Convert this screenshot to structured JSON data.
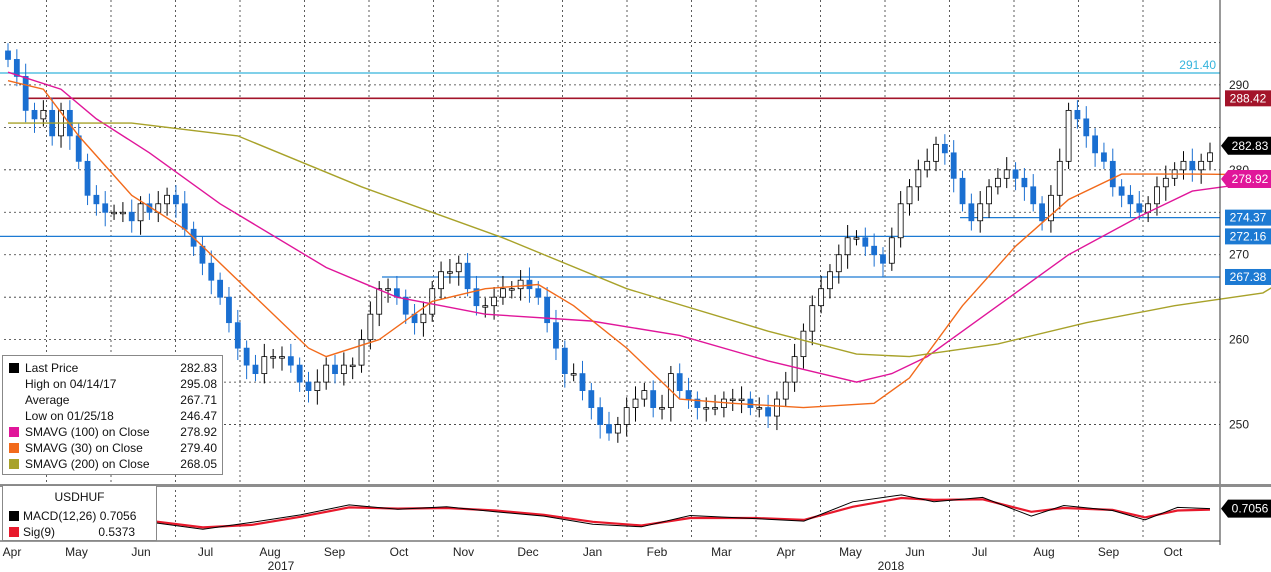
{
  "chart_data": {
    "type": "candlestick",
    "instrument": "USDHUF",
    "x_axis": {
      "months": [
        "Apr",
        "May",
        "Jun",
        "Jul",
        "Aug",
        "Sep",
        "Oct",
        "Nov",
        "Dec",
        "Jan",
        "Feb",
        "Mar",
        "Apr",
        "May",
        "Jun",
        "Jul",
        "Aug",
        "Sep",
        "Oct"
      ],
      "years": [
        "2017",
        "2018"
      ]
    },
    "y_axis": {
      "ticks": [
        250,
        260,
        270,
        280,
        290
      ],
      "range": [
        243,
        300
      ]
    },
    "close_series": [
      293,
      291,
      287,
      286,
      287,
      284,
      287,
      284,
      281,
      277,
      276,
      275,
      275,
      275,
      274,
      276,
      275,
      276,
      277,
      276,
      273,
      271,
      269,
      267,
      265,
      262,
      259,
      257,
      256,
      258,
      258,
      258,
      257,
      255,
      254,
      255,
      257,
      256,
      257,
      257,
      260,
      263,
      266,
      266,
      265,
      263,
      262,
      263,
      266,
      268,
      268,
      269,
      266,
      264,
      264,
      265,
      266,
      266,
      267,
      266,
      265,
      262,
      259,
      256,
      256,
      254,
      252,
      250,
      249,
      250,
      252,
      253,
      254,
      252,
      252,
      256,
      254,
      253,
      252,
      252,
      252,
      253,
      253,
      253,
      252,
      252,
      251,
      253,
      255,
      258,
      261,
      264,
      266,
      268,
      270,
      272,
      272,
      271,
      270,
      269,
      272,
      276,
      278,
      280,
      281,
      283,
      282,
      279,
      276,
      274,
      276,
      278,
      279,
      280,
      279,
      278,
      276,
      274,
      277,
      281,
      287,
      286,
      284,
      282,
      281,
      278,
      277,
      276,
      275,
      276,
      278,
      279,
      280,
      281,
      280,
      281,
      282
    ],
    "series": [
      {
        "name": "SMAVG (100)",
        "color": "#e0169a",
        "points": [
          [
            0,
            291.5
          ],
          [
            6,
            289.5
          ],
          [
            10,
            286
          ],
          [
            16,
            282
          ],
          [
            24,
            276
          ],
          [
            36,
            268.5
          ],
          [
            44,
            265
          ],
          [
            54,
            263
          ],
          [
            66,
            262.2
          ],
          [
            76,
            260.5
          ],
          [
            86,
            257.5
          ],
          [
            96,
            255
          ],
          [
            100,
            256
          ],
          [
            104,
            258
          ],
          [
            108,
            261
          ],
          [
            114,
            265.5
          ],
          [
            120,
            270
          ],
          [
            128,
            274.5
          ],
          [
            134,
            277.5
          ],
          [
            144,
            278.92
          ]
        ]
      },
      {
        "name": "SMAVG (30)",
        "color": "#f26a1b",
        "points": [
          [
            0,
            290.5
          ],
          [
            4,
            289.5
          ],
          [
            8,
            284
          ],
          [
            14,
            277
          ],
          [
            20,
            273
          ],
          [
            28,
            265
          ],
          [
            34,
            259
          ],
          [
            36,
            258
          ],
          [
            42,
            260
          ],
          [
            48,
            264.5
          ],
          [
            54,
            266
          ],
          [
            60,
            266.5
          ],
          [
            64,
            264
          ],
          [
            70,
            259
          ],
          [
            76,
            253
          ],
          [
            82,
            252.5
          ],
          [
            90,
            252
          ],
          [
            98,
            252.5
          ],
          [
            102,
            255.5
          ],
          [
            108,
            264
          ],
          [
            114,
            271
          ],
          [
            120,
            276.5
          ],
          [
            126,
            279.5
          ],
          [
            134,
            279.5
          ],
          [
            144,
            279.4
          ]
        ]
      },
      {
        "name": "SMAVG (200)",
        "color": "#a8a22a",
        "points": [
          [
            0,
            285.5
          ],
          [
            14,
            285.5
          ],
          [
            26,
            284
          ],
          [
            40,
            278
          ],
          [
            56,
            272
          ],
          [
            70,
            266
          ],
          [
            86,
            261
          ],
          [
            96,
            258.3
          ],
          [
            102,
            258
          ],
          [
            112,
            259.5
          ],
          [
            122,
            262
          ],
          [
            132,
            264
          ],
          [
            142,
            265.5
          ],
          [
            146,
            268.05
          ]
        ]
      }
    ],
    "horizontal_levels": [
      {
        "value": 291.4,
        "label": "291.40",
        "color": "#35b4dc"
      },
      {
        "value": 288.42,
        "label": "288.42",
        "color": "#a3142a"
      },
      {
        "value": 274.37,
        "label": "274.37",
        "color": "#1c7ad3"
      },
      {
        "value": 272.16,
        "label": "272.16",
        "color": "#1c7ad3"
      },
      {
        "value": 267.38,
        "label": "267.38",
        "color": "#1c7ad3"
      }
    ],
    "price_tags": [
      {
        "value": 282.83,
        "label": "282.83",
        "bg": "#000000",
        "fg": "#ffffff"
      },
      {
        "value": 278.92,
        "label": "278.92",
        "bg": "#e0169a",
        "fg": "#ffffff"
      }
    ],
    "legend": [
      {
        "label": "Last Price",
        "value": "282.83",
        "color": "#000000"
      },
      {
        "label": "High on 04/14/17",
        "value": "295.08",
        "color": ""
      },
      {
        "label": "Average",
        "value": "267.71",
        "color": ""
      },
      {
        "label": "Low on 01/25/18",
        "value": "246.47",
        "color": ""
      },
      {
        "label": "SMAVG (100)  on Close",
        "value": "278.92",
        "color": "#e0169a"
      },
      {
        "label": "SMAVG (30)  on Close",
        "value": "279.40",
        "color": "#f26a1b"
      },
      {
        "label": "SMAVG (200)  on Close",
        "value": "268.05",
        "color": "#a8a22a"
      }
    ],
    "macd": {
      "title": "USDHUF",
      "macd_label": "MACD(12,26)",
      "macd_value": "0.7056",
      "sig_label": "Sig(9)",
      "sig_value": "0.5373",
      "tag": "0.7056",
      "range": [
        -4,
        4
      ],
      "macd_points": [
        [
          0,
          1.2
        ],
        [
          8,
          -0.5
        ],
        [
          16,
          -1.2
        ],
        [
          24,
          -2.6
        ],
        [
          30,
          -1.5
        ],
        [
          36,
          -0.3
        ],
        [
          42,
          1.3
        ],
        [
          48,
          0.6
        ],
        [
          54,
          1.0
        ],
        [
          60,
          0.2
        ],
        [
          66,
          -0.5
        ],
        [
          72,
          -1.8
        ],
        [
          78,
          -2.2
        ],
        [
          84,
          -0.4
        ],
        [
          92,
          -0.9
        ],
        [
          98,
          -1.3
        ],
        [
          104,
          1.8
        ],
        [
          110,
          2.9
        ],
        [
          114,
          1.8
        ],
        [
          120,
          2.5
        ],
        [
          126,
          -0.5
        ],
        [
          130,
          1.2
        ],
        [
          136,
          0.4
        ],
        [
          140,
          -1.1
        ],
        [
          144,
          0.9
        ],
        [
          148,
          0.7
        ]
      ],
      "sig_points": [
        [
          0,
          1.0
        ],
        [
          8,
          0.0
        ],
        [
          16,
          -1.0
        ],
        [
          24,
          -2.3
        ],
        [
          30,
          -1.9
        ],
        [
          36,
          -0.6
        ],
        [
          42,
          0.9
        ],
        [
          48,
          0.7
        ],
        [
          54,
          0.8
        ],
        [
          60,
          0.4
        ],
        [
          66,
          -0.3
        ],
        [
          72,
          -1.4
        ],
        [
          78,
          -2.0
        ],
        [
          84,
          -0.8
        ],
        [
          92,
          -0.8
        ],
        [
          98,
          -1.1
        ],
        [
          104,
          1.0
        ],
        [
          110,
          2.4
        ],
        [
          114,
          2.1
        ],
        [
          120,
          2.2
        ],
        [
          126,
          0.2
        ],
        [
          130,
          0.8
        ],
        [
          136,
          0.5
        ],
        [
          140,
          -0.7
        ],
        [
          144,
          0.4
        ],
        [
          148,
          0.54
        ]
      ]
    }
  }
}
